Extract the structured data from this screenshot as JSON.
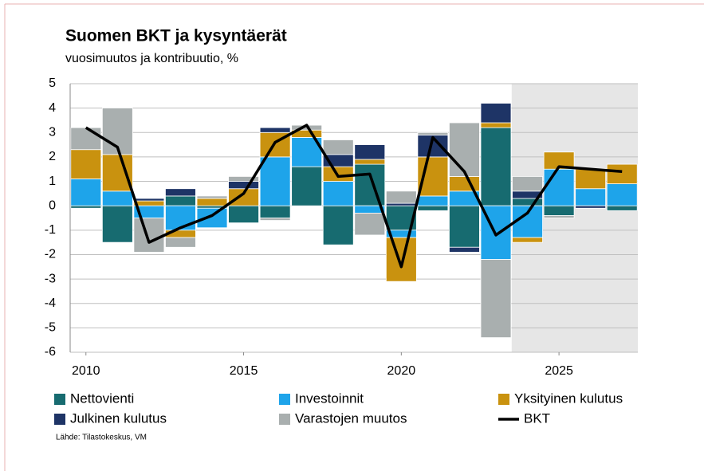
{
  "chart_data": {
    "type": "bar",
    "title": "Suomen BKT ja kysyntäerät",
    "subtitle": "vuosimuutos ja kontribuutio, %",
    "source": "Lähde: Tilastokeskus, VM",
    "x": [
      2010,
      2011,
      2012,
      2013,
      2014,
      2015,
      2016,
      2017,
      2018,
      2019,
      2020,
      2021,
      2022,
      2023,
      2024,
      2025,
      2026,
      2027
    ],
    "xlim": [
      2009.5,
      2027.5
    ],
    "xticks": [
      2010,
      2015,
      2020,
      2025
    ],
    "ylim": [
      -6,
      5
    ],
    "yticks": [
      -6,
      -5,
      -4,
      -3,
      -2,
      -1,
      0,
      1,
      2,
      3,
      4,
      5
    ],
    "grid": true,
    "stacked": true,
    "forecast_region": [
      2023.5,
      2027.5
    ],
    "series": [
      {
        "name": "Nettovienti",
        "type": "bar",
        "color": "#176b70",
        "values": [
          -0.1,
          -1.5,
          0,
          0.4,
          -0.1,
          -0.7,
          -0.5,
          1.6,
          -1.6,
          1.7,
          -1.0,
          -0.2,
          -1.7,
          3.2,
          0.3,
          -0.4,
          0,
          -0.2
        ]
      },
      {
        "name": "Investoinnit",
        "type": "bar",
        "color": "#1ea4ea",
        "values": [
          1.1,
          0.6,
          -0.5,
          -1.0,
          -0.8,
          0,
          2.0,
          1.2,
          1.0,
          -0.3,
          -0.3,
          0.4,
          0.6,
          -2.2,
          -1.3,
          1.5,
          0.7,
          0.9
        ]
      },
      {
        "name": "Yksityinen kulutus",
        "type": "bar",
        "color": "#c9920f",
        "values": [
          1.2,
          1.5,
          0.2,
          -0.3,
          0.3,
          0.7,
          1.0,
          0.3,
          0.6,
          0.2,
          -1.8,
          1.6,
          0.6,
          0.2,
          -0.2,
          0.7,
          0.8,
          0.8
        ]
      },
      {
        "name": "Julkinen kulutus",
        "type": "bar",
        "color": "#1e3466",
        "values": [
          0,
          0,
          0.1,
          0.3,
          0,
          0.3,
          0.2,
          0,
          0.5,
          0.6,
          0.1,
          0.9,
          -0.2,
          0.8,
          0.3,
          0,
          -0.1,
          0
        ]
      },
      {
        "name": "Varastojen muutos",
        "type": "bar",
        "color": "#a9afaf",
        "values": [
          0.9,
          1.9,
          -1.4,
          -0.4,
          0.1,
          0.2,
          -0.1,
          0.2,
          0.6,
          -0.9,
          0.5,
          0.1,
          2.2,
          -3.2,
          0.6,
          -0.1,
          0,
          0
        ]
      },
      {
        "name": "BKT",
        "type": "line",
        "color": "#000000",
        "values": [
          3.2,
          2.4,
          -1.5,
          -0.9,
          -0.4,
          0.5,
          2.6,
          3.3,
          1.2,
          1.3,
          -2.5,
          2.8,
          1.4,
          -1.2,
          -0.3,
          1.6,
          1.5,
          1.4
        ]
      }
    ]
  }
}
